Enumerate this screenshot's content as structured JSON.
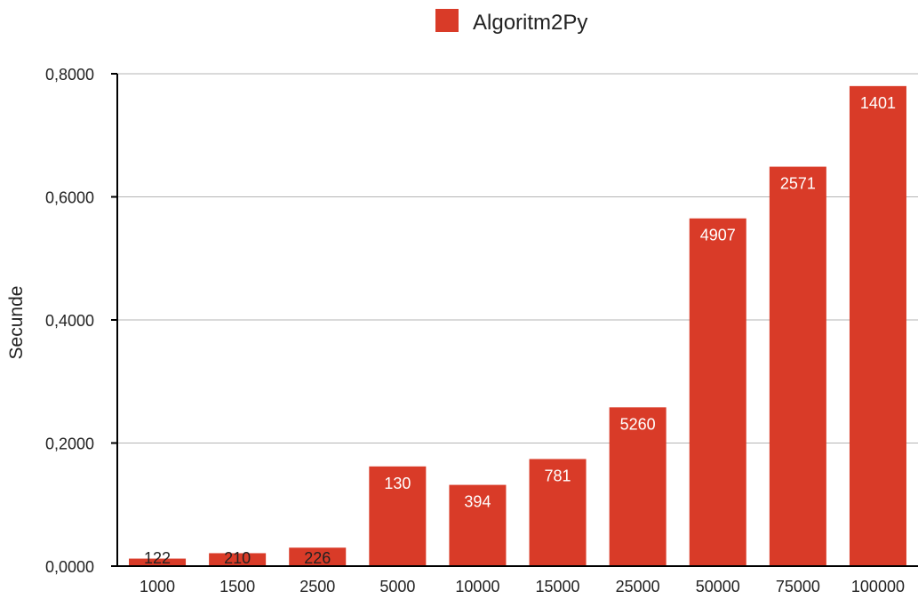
{
  "chart_data": {
    "type": "bar",
    "title": "",
    "xlabel": "",
    "ylabel": "Secunde",
    "ylim": [
      0,
      0.8
    ],
    "yticks": [
      "0,0000",
      "0,2000",
      "0,4000",
      "0,6000",
      "0,8000"
    ],
    "ytick_values": [
      0,
      0.2,
      0.4,
      0.6,
      0.8
    ],
    "grid": true,
    "legend_position": "top-center",
    "categories": [
      "1000",
      "1500",
      "2500",
      "5000",
      "10000",
      "15000",
      "25000",
      "50000",
      "75000",
      "100000"
    ],
    "series": [
      {
        "name": "Algoritm2Py",
        "color": "#d93b28",
        "values": [
          0.0122,
          0.021,
          0.03,
          0.162,
          0.132,
          0.174,
          0.258,
          0.565,
          0.649,
          0.78
        ],
        "data_labels": [
          "122",
          "210",
          "226",
          "130",
          "394",
          "781",
          "5260",
          "4907",
          "2571",
          "1401"
        ]
      }
    ]
  }
}
